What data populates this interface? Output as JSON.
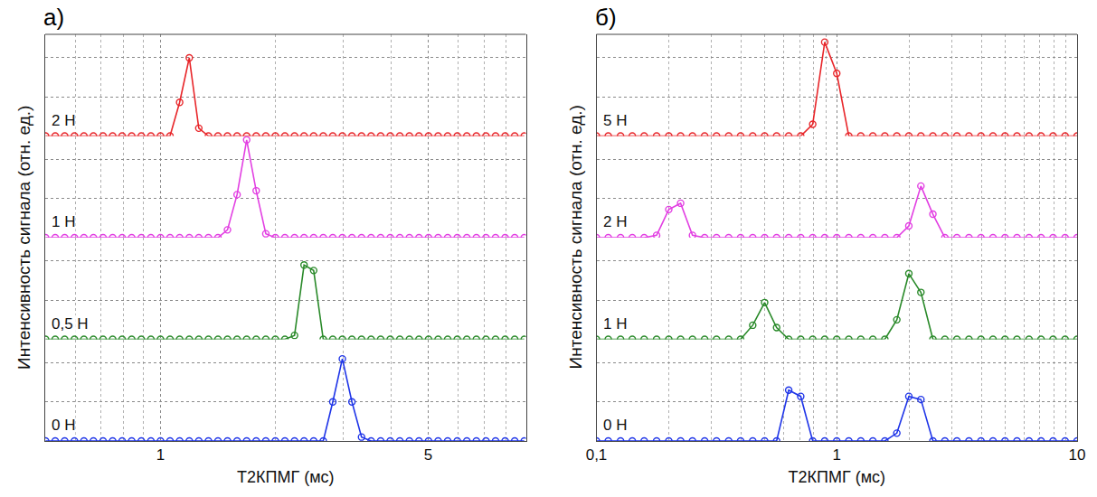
{
  "chart_data": [
    {
      "type": "line",
      "title": "а)",
      "x_label": "T2КПМГ (мс)",
      "y_label": "Интенсивность сигнала (отн. ед.)",
      "log": "x",
      "grid": true,
      "tick_labels": "x",
      "marker": "circle-open",
      "line_style": "solid",
      "xlim": [
        0.5,
        9
      ],
      "xticks": [
        1,
        5
      ],
      "ylim": [
        0,
        1.3
      ],
      "yticks": [
        0,
        0.5,
        1
      ],
      "x": [
        0.501,
        0.531,
        0.562,
        0.596,
        0.631,
        0.668,
        0.708,
        0.75,
        0.794,
        0.841,
        0.891,
        0.944,
        1,
        1.059,
        1.122,
        1.189,
        1.259,
        1.334,
        1.413,
        1.496,
        1.585,
        1.679,
        1.778,
        1.884,
        1.995,
        2.113,
        2.239,
        2.371,
        2.512,
        2.661,
        2.818,
        2.985,
        3.162,
        3.35,
        3.548,
        3.758,
        3.981,
        4.217,
        4.467,
        4.732,
        5.012,
        5.309,
        5.623,
        5.957,
        6.31,
        6.683,
        7.079,
        7.499,
        7.943,
        8.414,
        8.913
      ],
      "series": [
        {
          "name": "2 Н",
          "color": "#e8262a",
          "values": [
            0,
            0,
            0,
            0,
            0,
            0,
            0,
            0,
            0,
            0,
            0,
            0,
            0,
            0,
            0.43,
            1.0,
            0.1,
            0,
            0,
            0,
            0,
            0,
            0,
            0,
            0,
            0,
            0,
            0,
            0,
            0,
            0,
            0,
            0,
            0,
            0,
            0,
            0,
            0,
            0,
            0,
            0,
            0,
            0,
            0,
            0,
            0,
            0,
            0,
            0,
            0,
            0
          ]
        },
        {
          "name": "1 Н",
          "color": "#e23fe2",
          "values": [
            0,
            0,
            0,
            0,
            0,
            0,
            0,
            0,
            0,
            0,
            0,
            0,
            0,
            0,
            0,
            0,
            0,
            0,
            0,
            0.1,
            0.55,
            1.25,
            0.6,
            0.05,
            0,
            0,
            0,
            0,
            0,
            0,
            0,
            0,
            0,
            0,
            0,
            0,
            0,
            0,
            0,
            0,
            0,
            0,
            0,
            0,
            0,
            0,
            0,
            0,
            0,
            0,
            0
          ]
        },
        {
          "name": "0,5 Н",
          "color": "#2a8a2a",
          "values": [
            0,
            0,
            0,
            0,
            0,
            0,
            0,
            0,
            0,
            0,
            0,
            0,
            0,
            0,
            0,
            0,
            0,
            0,
            0,
            0,
            0,
            0,
            0,
            0,
            0,
            0,
            0.05,
            0.95,
            0.88,
            0,
            0,
            0,
            0,
            0,
            0,
            0,
            0,
            0,
            0,
            0,
            0,
            0,
            0,
            0,
            0,
            0,
            0,
            0,
            0,
            0,
            0
          ]
        },
        {
          "name": "0 Н",
          "color": "#1f35e8",
          "values": [
            0,
            0,
            0,
            0,
            0,
            0,
            0,
            0,
            0,
            0,
            0,
            0,
            0,
            0,
            0,
            0,
            0,
            0,
            0,
            0,
            0,
            0,
            0,
            0,
            0,
            0,
            0,
            0,
            0,
            0,
            0.5,
            1.05,
            0.5,
            0.05,
            0,
            0,
            0,
            0,
            0,
            0,
            0,
            0,
            0,
            0,
            0,
            0,
            0,
            0,
            0,
            0,
            0
          ]
        }
      ]
    },
    {
      "type": "line",
      "title": "б)",
      "x_label": "T2КПМГ (мс)",
      "y_label": "Интенсивность сигнала (отн. ед.)",
      "log": "x",
      "grid": true,
      "tick_labels": "x",
      "marker": "circle-open",
      "line_style": "solid",
      "xlim": [
        0.1,
        10
      ],
      "xticks": [
        {
          "value": 0.1,
          "label": "0,1"
        },
        1,
        10
      ],
      "ylim": [
        0,
        1.3
      ],
      "yticks": [
        0,
        0.5,
        1
      ],
      "x": [
        0.1,
        0.112,
        0.126,
        0.141,
        0.158,
        0.178,
        0.2,
        0.224,
        0.251,
        0.282,
        0.316,
        0.355,
        0.398,
        0.447,
        0.501,
        0.562,
        0.631,
        0.708,
        0.794,
        0.891,
        1,
        1.122,
        1.259,
        1.413,
        1.585,
        1.778,
        1.995,
        2.239,
        2.512,
        2.818,
        3.162,
        3.548,
        3.981,
        4.467,
        5.012,
        5.623,
        6.31,
        7.079,
        7.943,
        8.913,
        10
      ],
      "series": [
        {
          "name": "5 Н",
          "color": "#e8262a",
          "values": [
            0,
            0,
            0,
            0,
            0,
            0,
            0,
            0,
            0,
            0,
            0,
            0,
            0,
            0,
            0,
            0,
            0,
            0,
            0.15,
            1.2,
            0.8,
            0,
            0,
            0,
            0,
            0,
            0,
            0,
            0,
            0,
            0,
            0,
            0,
            0,
            0,
            0,
            0,
            0,
            0,
            0,
            0
          ]
        },
        {
          "name": "2 Н",
          "color": "#e23fe2",
          "values": [
            0,
            0,
            0,
            0,
            0,
            0.03,
            0.36,
            0.44,
            0.03,
            0,
            0,
            0,
            0,
            0,
            0,
            0,
            0,
            0,
            0,
            0,
            0,
            0,
            0,
            0,
            0,
            0,
            0.15,
            0.66,
            0.3,
            0,
            0,
            0,
            0,
            0,
            0,
            0,
            0,
            0,
            0,
            0,
            0
          ]
        },
        {
          "name": "1 Н",
          "color": "#2a8a2a",
          "values": [
            0,
            0,
            0,
            0,
            0,
            0,
            0,
            0,
            0,
            0,
            0,
            0,
            0,
            0.18,
            0.47,
            0.15,
            0,
            0,
            0,
            0,
            0,
            0,
            0,
            0,
            0,
            0.25,
            0.84,
            0.6,
            0,
            0,
            0,
            0,
            0,
            0,
            0,
            0,
            0,
            0,
            0,
            0,
            0
          ]
        },
        {
          "name": "0 Н",
          "color": "#1f35e8",
          "values": [
            0,
            0,
            0,
            0,
            0,
            0,
            0,
            0,
            0,
            0,
            0,
            0,
            0,
            0,
            0,
            0,
            0.65,
            0.57,
            0,
            0,
            0,
            0,
            0,
            0,
            0,
            0.1,
            0.57,
            0.53,
            0,
            0,
            0,
            0,
            0,
            0,
            0,
            0,
            0,
            0,
            0,
            0,
            0
          ]
        }
      ]
    }
  ]
}
